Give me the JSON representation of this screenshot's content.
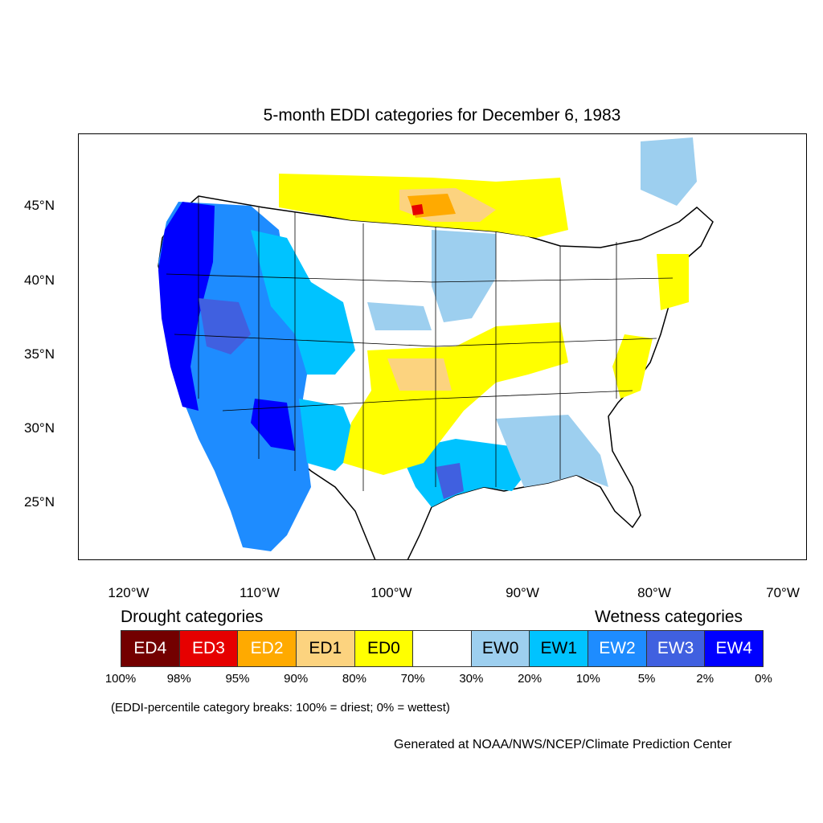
{
  "title": "5-month EDDI categories for December 6, 1983",
  "lat_labels": [
    "45°N",
    "40°N",
    "35°N",
    "30°N",
    "25°N"
  ],
  "lon_labels": [
    "120°W",
    "110°W",
    "100°W",
    "90°W",
    "80°W",
    "70°W"
  ],
  "legend": {
    "drought_heading": "Drought categories",
    "wetness_heading": "Wetness categories",
    "categories": [
      {
        "label": "ED4",
        "color": "#730000",
        "text": "#ffffff"
      },
      {
        "label": "ED3",
        "color": "#e60000",
        "text": "#ffffff"
      },
      {
        "label": "ED2",
        "color": "#ffaa00",
        "text": "#ffffff"
      },
      {
        "label": "ED1",
        "color": "#fcd37f",
        "text": "#000000"
      },
      {
        "label": "ED0",
        "color": "#ffff00",
        "text": "#000000"
      },
      {
        "label": "",
        "color": "#ffffff",
        "text": "#000000"
      },
      {
        "label": "EW0",
        "color": "#9dcfef",
        "text": "#000000"
      },
      {
        "label": "EW1",
        "color": "#00c3ff",
        "text": "#000000"
      },
      {
        "label": "EW2",
        "color": "#1e8cff",
        "text": "#ffffff"
      },
      {
        "label": "EW3",
        "color": "#4060e0",
        "text": "#ffffff"
      },
      {
        "label": "EW4",
        "color": "#0000ff",
        "text": "#ffffff"
      }
    ],
    "breaks": [
      "100%",
      "98%",
      "95%",
      "90%",
      "80%",
      "70%",
      "30%",
      "20%",
      "10%",
      "5%",
      "2%",
      "0%"
    ]
  },
  "note": "(EDDI-percentile category breaks: 100% = driest; 0% = wettest)",
  "credit": "Generated at NOAA/NWS/NCEP/Climate Prediction Center"
}
